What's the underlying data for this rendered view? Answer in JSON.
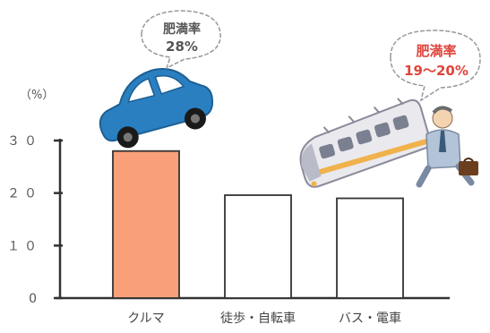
{
  "chart_data": {
    "type": "bar",
    "categories": [
      "クルマ",
      "徒歩・自転車",
      "バス・電車"
    ],
    "values": [
      28,
      19.6,
      19
    ],
    "highlight_index": 0,
    "ylabel": "（%）",
    "ylim": [
      0,
      30
    ],
    "yticks": [
      0,
      10,
      20,
      30
    ],
    "ytick_labels": [
      "0",
      "１０",
      "２０",
      "３０"
    ],
    "grid": false,
    "colors": {
      "highlight": "#f9a07a",
      "default": "#ffffff",
      "outline": "#333333",
      "axis": "#333333"
    },
    "annotations": [
      {
        "target": "クルマ",
        "icon": "car-icon",
        "line1": "肥満率",
        "line2": "28%"
      },
      {
        "target": "バス・電車",
        "icon": "train-businessman-icon",
        "line1": "肥満率",
        "line2": "19～20%"
      }
    ]
  }
}
